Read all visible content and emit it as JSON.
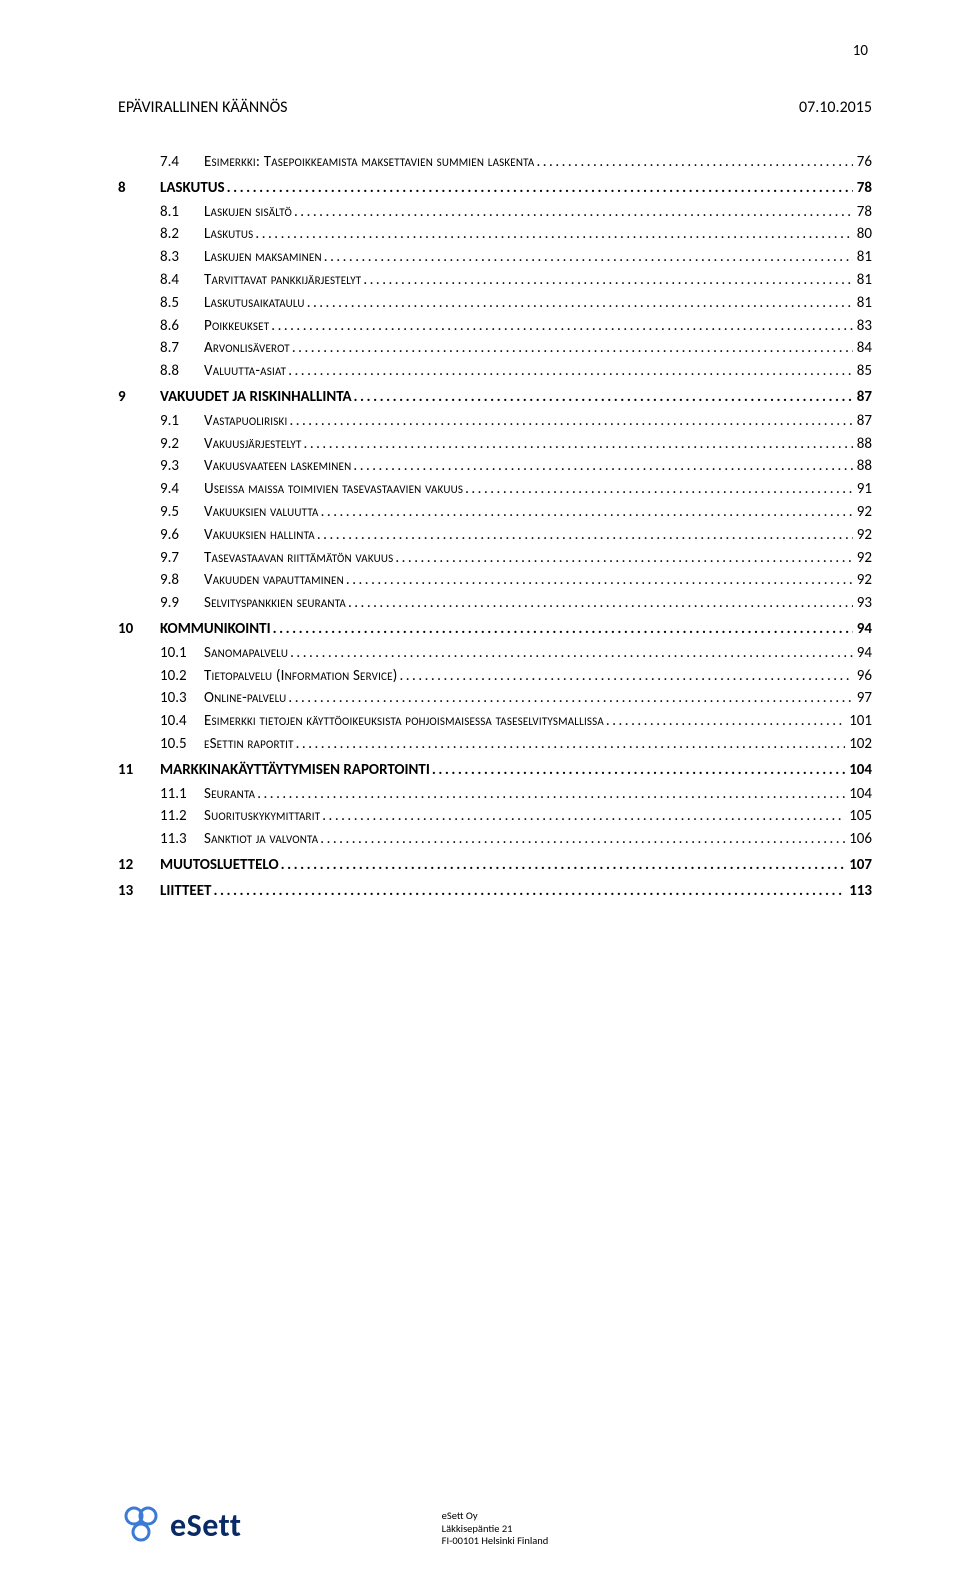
{
  "page_number_top": "10",
  "header_left": "EPÄVIRALLINEN KÄÄNNÖS",
  "header_right": "07.10.2015",
  "toc": [
    {
      "level": "sub",
      "num": "7.4",
      "title": "Esimerkki: Tasepoikkeamista maksettavien summien laskenta",
      "page": "76",
      "sc": true
    },
    {
      "level": "chapter",
      "num": "8",
      "title": "LASKUTUS",
      "page": "78",
      "bold": true
    },
    {
      "level": "sub",
      "num": "8.1",
      "title": "Laskujen sisältö",
      "page": "78",
      "sc": true
    },
    {
      "level": "sub",
      "num": "8.2",
      "title": "Laskutus",
      "page": "80",
      "sc": true
    },
    {
      "level": "sub",
      "num": "8.3",
      "title": "Laskujen maksaminen",
      "page": "81",
      "sc": true
    },
    {
      "level": "sub",
      "num": "8.4",
      "title": "Tarvittavat pankkijärjestelyt",
      "page": "81",
      "sc": true
    },
    {
      "level": "sub",
      "num": "8.5",
      "title": "Laskutusaikataulu",
      "page": "81",
      "sc": true
    },
    {
      "level": "sub",
      "num": "8.6",
      "title": "Poikkeukset",
      "page": "83",
      "sc": true
    },
    {
      "level": "sub",
      "num": "8.7",
      "title": "Arvonlisäverot",
      "page": "84",
      "sc": true
    },
    {
      "level": "sub",
      "num": "8.8",
      "title": "Valuutta-asiat",
      "page": "85",
      "sc": true
    },
    {
      "level": "chapter",
      "num": "9",
      "title": "VAKUUDET JA RISKINHALLINTA",
      "page": "87",
      "bold": true
    },
    {
      "level": "sub",
      "num": "9.1",
      "title": "Vastapuoliriski",
      "page": "87",
      "sc": true
    },
    {
      "level": "sub",
      "num": "9.2",
      "title": "Vakuusjärjestelyt",
      "page": "88",
      "sc": true
    },
    {
      "level": "sub",
      "num": "9.3",
      "title": "Vakuusvaateen laskeminen",
      "page": "88",
      "sc": true
    },
    {
      "level": "sub",
      "num": "9.4",
      "title": "Useissa maissa toimivien tasevastaavien vakuus",
      "page": "91",
      "sc": true
    },
    {
      "level": "sub",
      "num": "9.5",
      "title": "Vakuuksien valuutta",
      "page": "92",
      "sc": true
    },
    {
      "level": "sub",
      "num": "9.6",
      "title": "Vakuuksien hallinta",
      "page": "92",
      "sc": true
    },
    {
      "level": "sub",
      "num": "9.7",
      "title": "Tasevastaavan riittämätön vakuus",
      "page": "92",
      "sc": true
    },
    {
      "level": "sub",
      "num": "9.8",
      "title": "Vakuuden vapauttaminen",
      "page": "92",
      "sc": true
    },
    {
      "level": "sub",
      "num": "9.9",
      "title": "Selvityspankkien seuranta",
      "page": "93",
      "sc": true
    },
    {
      "level": "chapter",
      "num": "10",
      "title": "KOMMUNIKOINTI",
      "page": "94",
      "bold": true
    },
    {
      "level": "sub",
      "num": "10.1",
      "title": "Sanomapalvelu",
      "page": "94",
      "sc": true
    },
    {
      "level": "sub",
      "num": "10.2",
      "title": "Tietopalvelu (Information Service)",
      "page": "96",
      "sc": true
    },
    {
      "level": "sub",
      "num": "10.3",
      "title": "Online-palvelu",
      "page": "97",
      "sc": true
    },
    {
      "level": "sub",
      "num": "10.4",
      "title": "Esimerkki tietojen käyttöoikeuksista pohjoismaisessa taseselvitysmallissa",
      "page": "101",
      "sc": true
    },
    {
      "level": "sub",
      "num": "10.5",
      "title": "eSettin raportit",
      "page": "102",
      "sc": true
    },
    {
      "level": "chapter",
      "num": "11",
      "title": "MARKKINAKÄYTTÄYTYMISEN RAPORTOINTI",
      "page": "104",
      "bold": true
    },
    {
      "level": "sub",
      "num": "11.1",
      "title": "Seuranta",
      "page": "104",
      "sc": true
    },
    {
      "level": "sub",
      "num": "11.2",
      "title": "Suorituskykymittarit",
      "page": "105",
      "sc": true
    },
    {
      "level": "sub",
      "num": "11.3",
      "title": "Sanktiot ja valvonta",
      "page": "106",
      "sc": true
    },
    {
      "level": "chapter",
      "num": "12",
      "title": "MUUTOSLUETTELO",
      "page": "107",
      "bold": true
    },
    {
      "level": "chapter",
      "num": "13",
      "title": "LIITTEET",
      "page": "113",
      "bold": true
    }
  ],
  "footer": {
    "logo_text": "eSett",
    "company": "eSett Oy",
    "addr1": "Läkkisepäntie 21",
    "addr2": "FI-00101 Helsinki Finland"
  },
  "colors": {
    "logo_blue": "#0a2a66",
    "logo_accent": "#3b7bd6",
    "text": "#000000",
    "bg": "#ffffff"
  }
}
